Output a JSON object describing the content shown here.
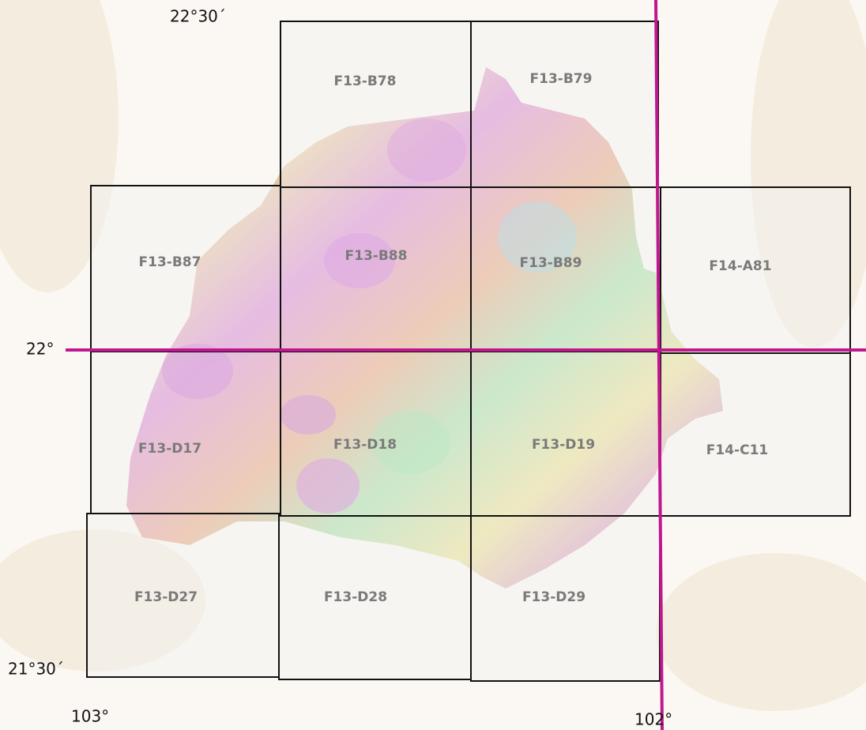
{
  "tiles": [
    "F13-B78",
    "F13-B79",
    "F13-B87",
    "F13-B88",
    "F13-B89",
    "F14-A81",
    "F13-D17",
    "F13-D18",
    "F13-D19",
    "F14-C11",
    "F13-D27",
    "F13-D28",
    "F13-D29"
  ],
  "coordinate_labels": [
    "22°30´",
    "22°",
    "21°30´",
    "103°",
    "102°"
  ]
}
